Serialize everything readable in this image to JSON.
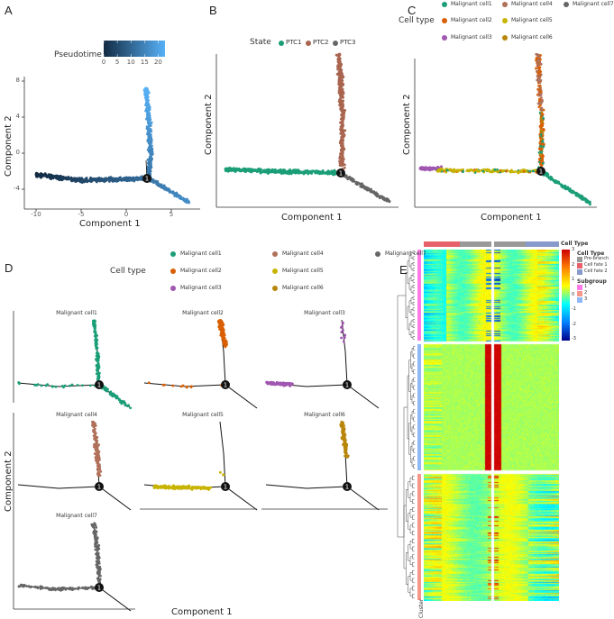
{
  "chart_data": [
    {
      "panel": "A",
      "type": "scatter",
      "xlabel": "Component 1",
      "ylabel": "Component 2",
      "xticks": [
        -10,
        -5,
        0,
        5
      ],
      "yticks": [
        8,
        4,
        0,
        -4
      ],
      "xlim": [
        -11,
        7.5
      ],
      "ylim": [
        -6,
        8
      ],
      "legend": {
        "title": "Pseudotime",
        "type": "colorbar",
        "ticks": [
          0,
          5,
          10,
          15,
          20
        ],
        "colors": [
          "#132b43",
          "#56b1f7"
        ],
        "placement": "top"
      },
      "branch_point_label": "1",
      "trajectory": {
        "root": [
          -10,
          -2.4
        ],
        "branch": [
          2.3,
          -2.8
        ],
        "tips": [
          [
            2.2,
            7.3
          ],
          [
            7,
            -5.5
          ]
        ]
      }
    },
    {
      "panel": "B",
      "type": "scatter",
      "xlabel": "Component 1",
      "ylabel": "Component 2",
      "legend": {
        "title": "State",
        "placement": "top",
        "entries": [
          {
            "name": "PTC1",
            "color": "#1b9e77"
          },
          {
            "name": "PTC2",
            "color": "#a9654f"
          },
          {
            "name": "PTC3",
            "color": "#666666"
          }
        ]
      },
      "branch_point_label": "1"
    },
    {
      "panel": "C",
      "type": "scatter",
      "xlabel": "Component 1",
      "ylabel": "Component 2",
      "legend": {
        "title": "Cell type",
        "placement": "top",
        "entries": [
          {
            "name": "Malignant cell1",
            "color": "#1b9e77"
          },
          {
            "name": "Malignant cell4",
            "color": "#b0705a"
          },
          {
            "name": "Malignant cell7",
            "color": "#666666"
          },
          {
            "name": "Malignant cell2",
            "color": "#d95f02"
          },
          {
            "name": "Malignant cell5",
            "color": "#c8b400"
          },
          {
            "name": "Malignant cell3",
            "color": "#a057b0"
          },
          {
            "name": "Malignant cell6",
            "color": "#b8860b"
          }
        ]
      },
      "branch_point_label": "1"
    },
    {
      "panel": "D",
      "type": "scatter",
      "xlabel": "Component 1",
      "ylabel": "Component 2",
      "legend": {
        "title": "Cell type",
        "placement": "top"
      },
      "facets": [
        "Malignant cell1",
        "Malignant cell2",
        "Malignant cell3",
        "Malignant cell4",
        "Malignant cell5",
        "Malignant cell6",
        "Malignant cell7"
      ],
      "branch_point_label": "1"
    },
    {
      "panel": "E",
      "type": "heatmap",
      "colorbar": {
        "title": "Cell Type",
        "ticks": [
          3,
          2,
          1,
          0,
          -1,
          -2,
          -3
        ],
        "colors": [
          "#00008b",
          "#0080ff",
          "#00ffff",
          "#ffff00",
          "#ff8000",
          "#cc0000"
        ]
      },
      "column_annotation": {
        "title": "Cell Type",
        "entries": [
          {
            "name": "Pre-branch",
            "color": "#999999"
          },
          {
            "name": "Cell fate 1",
            "color": "#e8606a"
          },
          {
            "name": "Cell fate 2",
            "color": "#8899cc"
          }
        ]
      },
      "row_annotation": {
        "title": "Subgroup",
        "label": "Cluster",
        "entries": [
          {
            "name": "1",
            "color": "#ff7ae8"
          },
          {
            "name": "2",
            "color": "#f7978a"
          },
          {
            "name": "3",
            "color": "#8fb8f5"
          }
        ]
      }
    }
  ]
}
